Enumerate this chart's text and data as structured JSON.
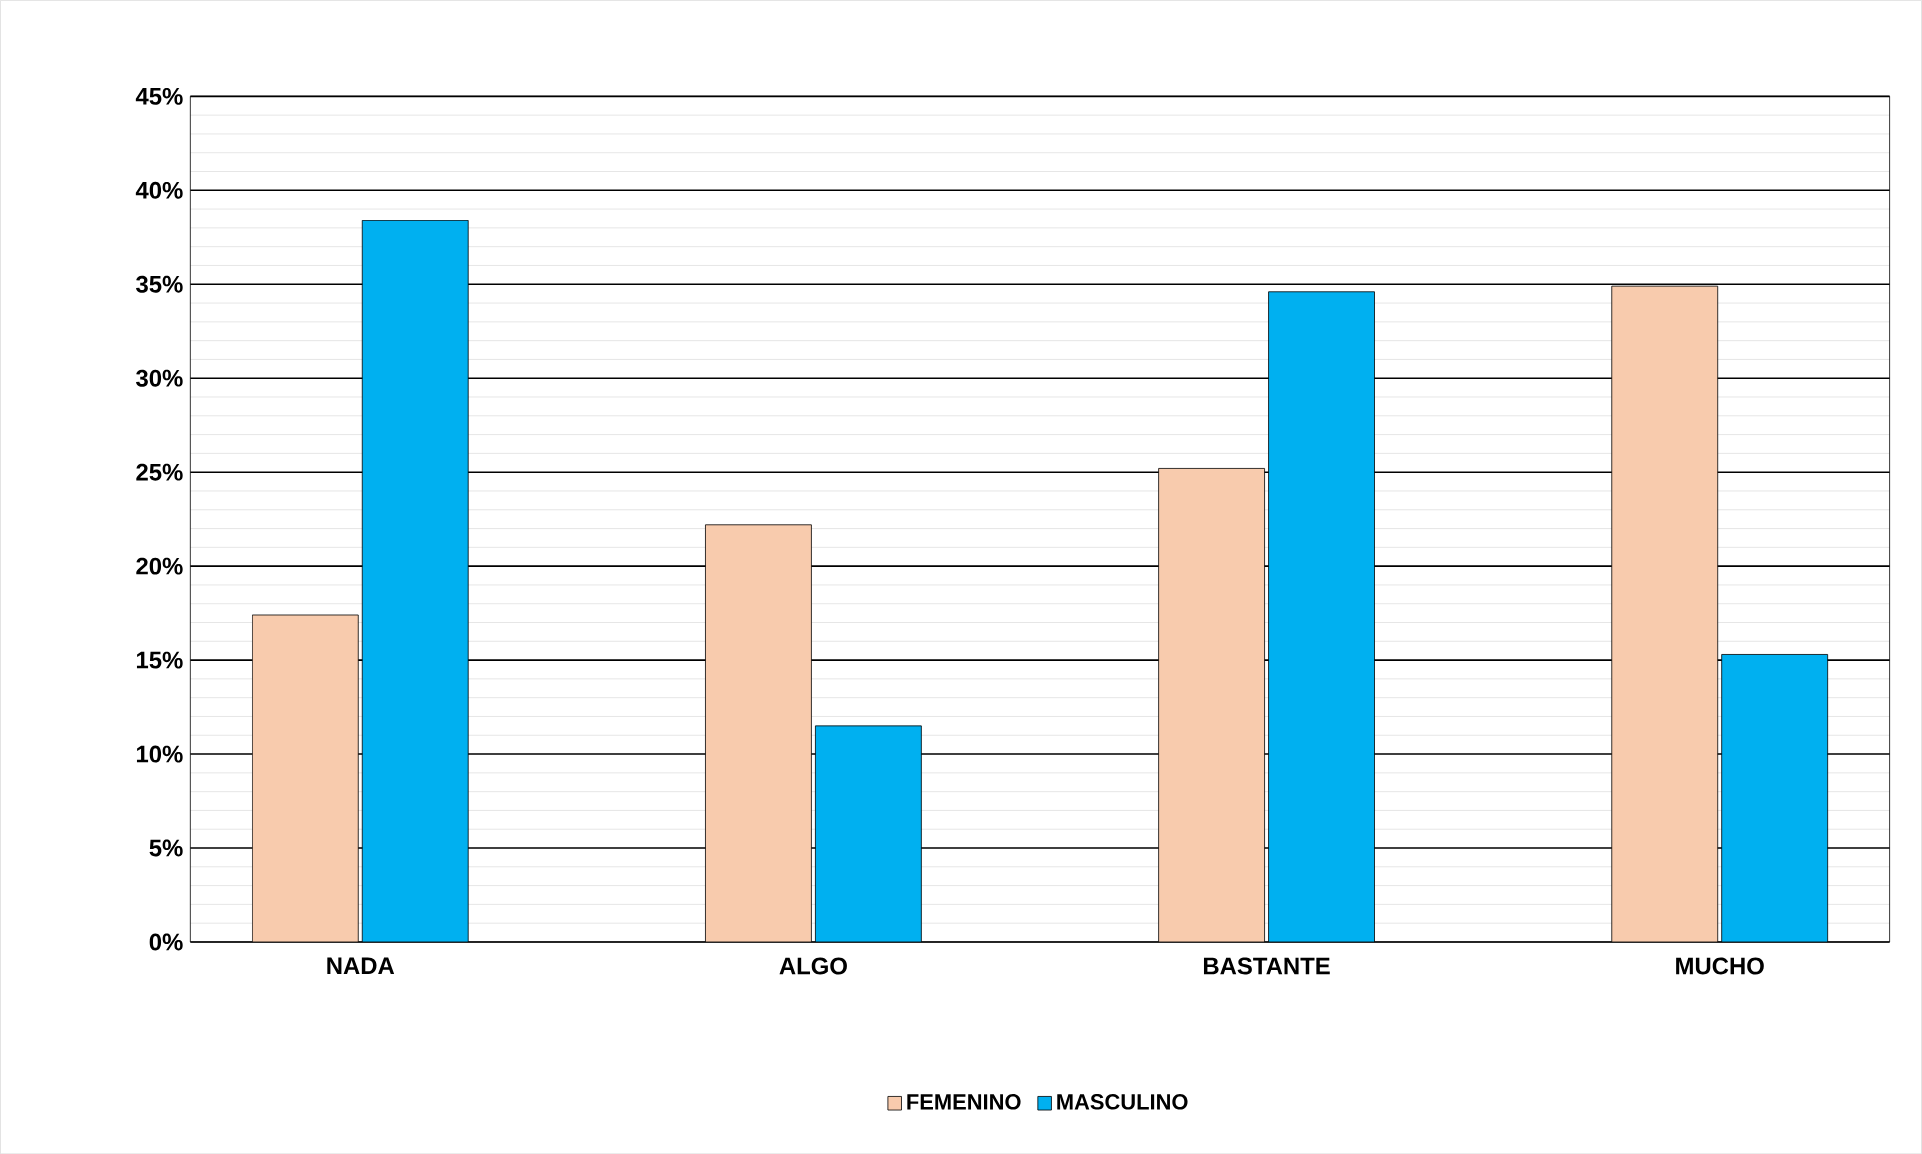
{
  "chart_data": {
    "type": "bar",
    "categories": [
      "NADA",
      "ALGO",
      "BASTANTE",
      "MUCHO"
    ],
    "series": [
      {
        "name": "FEMENINO",
        "color": "#f8cbad",
        "values": [
          17.4,
          22.2,
          25.2,
          34.9
        ]
      },
      {
        "name": "MASCULINO",
        "color": "#00b0f0",
        "values": [
          38.4,
          11.5,
          34.6,
          15.3
        ]
      }
    ],
    "ylim": [
      0,
      45
    ],
    "yticks": [
      {
        "value": 0,
        "label": "0%"
      },
      {
        "value": 5,
        "label": "5%"
      },
      {
        "value": 10,
        "label": "10%"
      },
      {
        "value": 15,
        "label": "15%"
      },
      {
        "value": 20,
        "label": "20%"
      },
      {
        "value": 25,
        "label": "25%"
      },
      {
        "value": 30,
        "label": "30%"
      },
      {
        "value": 35,
        "label": "35%"
      },
      {
        "value": 40,
        "label": "40%"
      },
      {
        "value": 45,
        "label": "45%"
      }
    ],
    "grid": "y",
    "legend": "bottom"
  }
}
